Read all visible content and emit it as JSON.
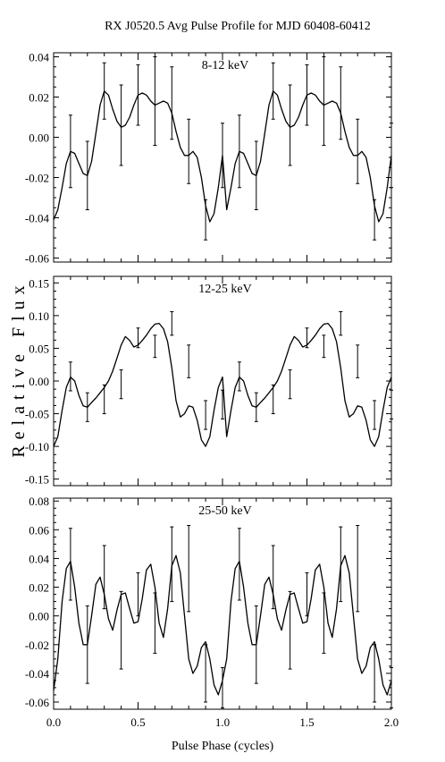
{
  "chart_data": {
    "type": "line",
    "title": "RX J0520.5 Avg Pulse Profile for MJD 60408-60412",
    "xlabel": "Pulse Phase (cycles)",
    "ylabel": "Relative Flux",
    "xlim": [
      0.0,
      2.0
    ],
    "xticks": [
      0.0,
      0.5,
      1.0,
      1.5,
      2.0
    ],
    "xtick_labels": [
      "0.0",
      "0.5",
      "1.0",
      "1.5",
      "2.0"
    ],
    "grid": false,
    "line_color": "#000000",
    "panels": [
      {
        "label": "8-12 keV",
        "ylim": [
          -0.062,
          0.042
        ],
        "yticks": [
          -0.06,
          -0.04,
          -0.02,
          0.0,
          0.02,
          0.04
        ],
        "ytick_labels": [
          "-0.06",
          "-0.04",
          "-0.02",
          "0.00",
          "0.02",
          "0.04"
        ],
        "bin_phase": [
          0.1,
          0.2,
          0.3,
          0.4,
          0.5,
          0.6,
          0.7,
          0.8,
          0.9,
          1.0
        ],
        "bin_values": [
          -0.007,
          -0.019,
          0.023,
          0.006,
          0.021,
          0.018,
          0.017,
          -0.007,
          -0.041,
          -0.009
        ],
        "bin_errors": [
          0.018,
          0.017,
          0.014,
          0.02,
          0.015,
          0.022,
          0.018,
          0.016,
          0.01,
          0.016
        ],
        "curve_x": [
          0.0,
          0.025,
          0.05,
          0.075,
          0.1,
          0.125,
          0.15,
          0.175,
          0.2,
          0.225,
          0.25,
          0.275,
          0.3,
          0.325,
          0.35,
          0.375,
          0.4,
          0.425,
          0.45,
          0.475,
          0.5,
          0.525,
          0.55,
          0.575,
          0.6,
          0.625,
          0.65,
          0.675,
          0.7,
          0.725,
          0.75,
          0.775,
          0.8,
          0.825,
          0.85,
          0.875,
          0.9,
          0.925,
          0.95,
          0.975,
          1.0
        ],
        "curve_y": [
          -0.041,
          -0.036,
          -0.025,
          -0.013,
          -0.007,
          -0.008,
          -0.013,
          -0.018,
          -0.019,
          -0.012,
          0.002,
          0.016,
          0.023,
          0.021,
          0.014,
          0.008,
          0.005,
          0.006,
          0.01,
          0.016,
          0.021,
          0.022,
          0.021,
          0.018,
          0.016,
          0.017,
          0.018,
          0.017,
          0.012,
          0.003,
          -0.005,
          -0.009,
          -0.009,
          -0.007,
          -0.01,
          -0.02,
          -0.034,
          -0.042,
          -0.038,
          -0.025,
          -0.009
        ]
      },
      {
        "label": "12-25 keV",
        "ylim": [
          -0.16,
          0.16
        ],
        "yticks": [
          -0.15,
          -0.1,
          -0.05,
          0.0,
          0.05,
          0.1,
          0.15
        ],
        "ytick_labels": [
          "-0.15",
          "-0.10",
          "-0.05",
          "0.00",
          "0.05",
          "0.10",
          "0.15"
        ],
        "bin_phase": [
          0.1,
          0.2,
          0.3,
          0.4,
          0.5,
          0.6,
          0.7,
          0.8,
          0.9,
          1.0
        ],
        "bin_values": [
          0.007,
          -0.04,
          -0.028,
          -0.005,
          0.066,
          0.053,
          0.088,
          0.03,
          -0.052,
          -0.036
        ],
        "bin_errors": [
          0.022,
          0.022,
          0.022,
          0.022,
          0.015,
          0.017,
          0.018,
          0.025,
          0.022,
          0.022
        ],
        "curve_x": [
          0.0,
          0.025,
          0.05,
          0.075,
          0.1,
          0.125,
          0.15,
          0.175,
          0.2,
          0.225,
          0.25,
          0.275,
          0.3,
          0.325,
          0.35,
          0.375,
          0.4,
          0.425,
          0.45,
          0.475,
          0.5,
          0.525,
          0.55,
          0.575,
          0.6,
          0.625,
          0.65,
          0.675,
          0.7,
          0.725,
          0.75,
          0.775,
          0.8,
          0.825,
          0.85,
          0.875,
          0.9,
          0.925,
          0.95,
          0.975,
          1.0
        ],
        "curve_y": [
          -0.1,
          -0.085,
          -0.045,
          -0.01,
          0.006,
          0.0,
          -0.022,
          -0.038,
          -0.04,
          -0.033,
          -0.026,
          -0.018,
          -0.01,
          0.0,
          0.015,
          0.035,
          0.055,
          0.068,
          0.062,
          0.052,
          0.055,
          0.062,
          0.07,
          0.08,
          0.087,
          0.088,
          0.08,
          0.06,
          0.02,
          -0.03,
          -0.055,
          -0.05,
          -0.038,
          -0.04,
          -0.06,
          -0.09,
          -0.1,
          -0.085,
          -0.045,
          -0.01,
          0.006
        ]
      },
      {
        "label": "25-50 keV",
        "ylim": [
          -0.065,
          0.082
        ],
        "yticks": [
          -0.06,
          -0.04,
          -0.02,
          0.0,
          0.02,
          0.04,
          0.06,
          0.08
        ],
        "ytick_labels": [
          "-0.06",
          "-0.04",
          "-0.02",
          "0.00",
          "0.02",
          "0.04",
          "0.06",
          "0.08"
        ],
        "bin_phase": [
          0.1,
          0.2,
          0.3,
          0.4,
          0.5,
          0.6,
          0.7,
          0.8,
          0.9,
          1.0
        ],
        "bin_values": [
          0.036,
          -0.02,
          0.027,
          -0.01,
          0.015,
          -0.005,
          0.036,
          0.033,
          -0.04,
          -0.05
        ],
        "bin_errors": [
          0.025,
          0.027,
          0.022,
          0.027,
          0.015,
          0.021,
          0.026,
          0.03,
          0.02,
          0.014
        ],
        "curve_x": [
          0.0,
          0.025,
          0.05,
          0.075,
          0.1,
          0.125,
          0.15,
          0.175,
          0.2,
          0.225,
          0.25,
          0.275,
          0.3,
          0.325,
          0.35,
          0.375,
          0.4,
          0.425,
          0.45,
          0.475,
          0.5,
          0.525,
          0.55,
          0.575,
          0.6,
          0.625,
          0.65,
          0.675,
          0.7,
          0.725,
          0.75,
          0.775,
          0.8,
          0.825,
          0.85,
          0.875,
          0.9,
          0.925,
          0.95,
          0.975,
          1.0
        ],
        "curve_y": [
          -0.052,
          -0.03,
          0.01,
          0.033,
          0.038,
          0.02,
          -0.005,
          -0.02,
          -0.02,
          0.0,
          0.022,
          0.027,
          0.015,
          -0.002,
          -0.01,
          0.004,
          0.015,
          0.016,
          0.005,
          -0.005,
          -0.004,
          0.012,
          0.032,
          0.036,
          0.02,
          -0.005,
          -0.015,
          0.005,
          0.035,
          0.042,
          0.03,
          0.0,
          -0.03,
          -0.04,
          -0.035,
          -0.022,
          -0.018,
          -0.03,
          -0.048,
          -0.055,
          -0.045
        ]
      }
    ]
  }
}
